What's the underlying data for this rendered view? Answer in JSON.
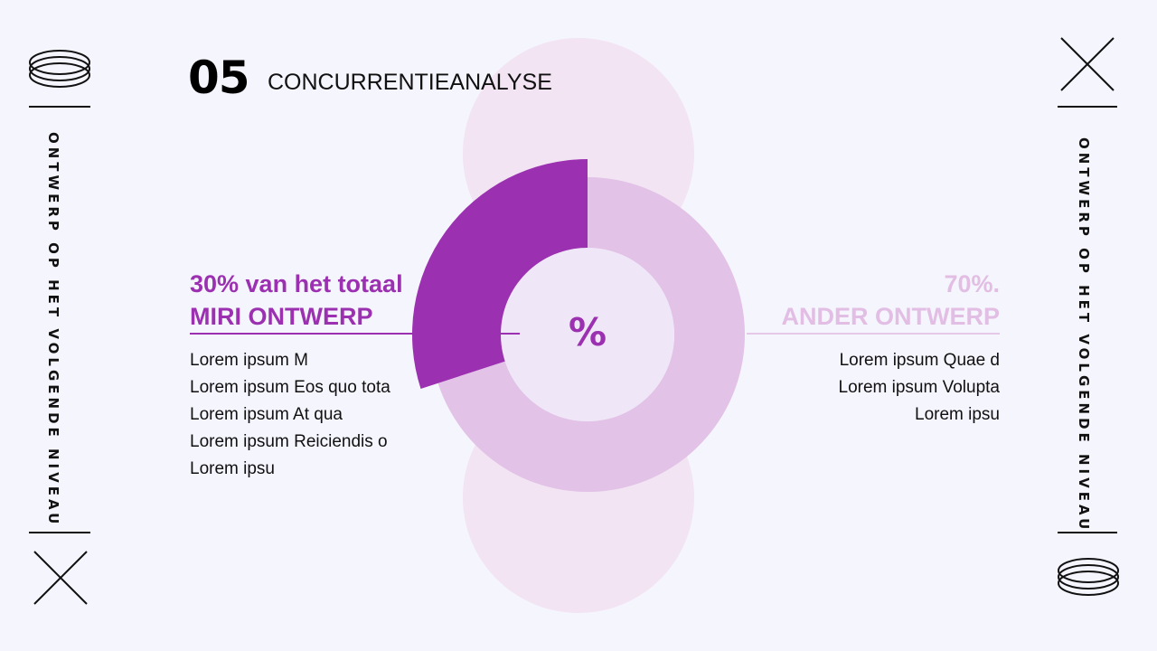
{
  "section": {
    "number": "05",
    "title": "CONCURRENTIEANALYSE"
  },
  "side": {
    "vertical_text": "ONTWERP OP HET VOLGENDE NIVEAU"
  },
  "icons": {
    "rings": "stacked-rings-icon",
    "cross": "x-cross-icon"
  },
  "colors": {
    "accent": "#9b30b0",
    "light": "#e2bde4",
    "ring": "#e2c2e6",
    "hole": "#efe6f7",
    "bg_circle": "#f2e4f3",
    "background": "#f5f5fd"
  },
  "chart_data": {
    "type": "pie",
    "center_label": "%",
    "slices": [
      {
        "label": "30% van het totaal",
        "value": 30,
        "name": "MIRI ONTWERP",
        "color": "#9b30b0"
      },
      {
        "label": "70%.",
        "value": 70,
        "name": "ANDER ONTWERP",
        "color": "#e2c2e6"
      }
    ]
  },
  "left": {
    "line1": "30% van het totaal",
    "line2": "MIRI ONTWERP",
    "items": [
      "Lorem ipsum M",
      "Lorem ipsum Eos quo tota",
      "Lorem ipsum At qua",
      "Lorem ipsum Reiciendis o",
      "Lorem ipsu"
    ]
  },
  "right": {
    "line1": "70%.",
    "line2": "ANDER ONTWERP",
    "items": [
      "Lorem ipsum Quae d",
      "Lorem ipsum Volupta",
      "Lorem ipsu"
    ]
  }
}
